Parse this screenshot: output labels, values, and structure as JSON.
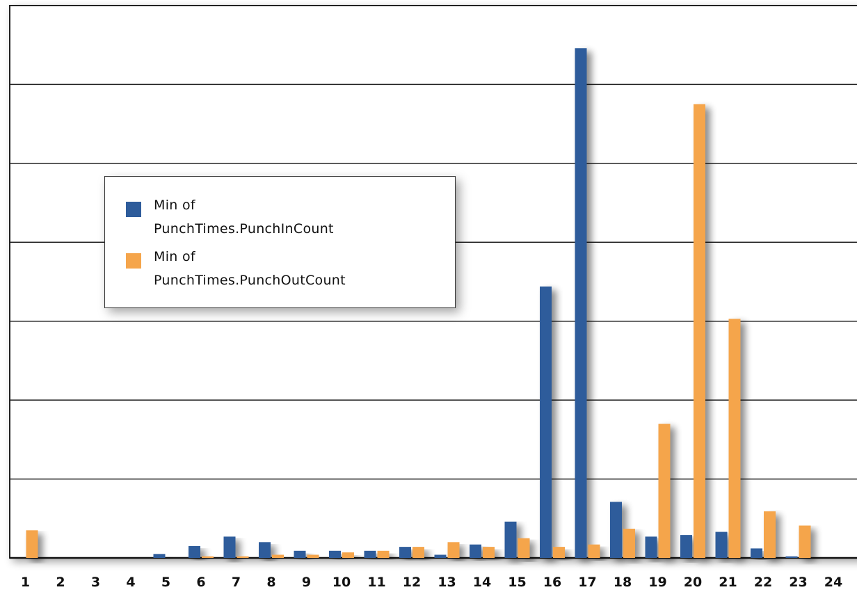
{
  "chart_data": {
    "type": "bar",
    "categories": [
      "1",
      "2",
      "3",
      "4",
      "5",
      "6",
      "7",
      "8",
      "9",
      "10",
      "11",
      "12",
      "13",
      "14",
      "15",
      "16",
      "17",
      "18",
      "19",
      "20",
      "21",
      "22",
      "23",
      "24"
    ],
    "series": [
      {
        "name": "Min of PunchTimes.PunchInCount",
        "color": "#2e5c9b",
        "values": [
          0,
          0,
          0,
          0,
          0.05,
          0.15,
          0.27,
          0.2,
          0.09,
          0.09,
          0.09,
          0.14,
          0.04,
          0.17,
          0.46,
          3.44,
          6.46,
          0.71,
          0.27,
          0.29,
          0.33,
          0.12,
          0.02,
          0
        ]
      },
      {
        "name": "Min of PunchTimes.PunchOutCount",
        "color": "#f5a54b",
        "values": [
          0.35,
          0,
          0,
          0,
          0,
          0.02,
          0.02,
          0.04,
          0.04,
          0.07,
          0.09,
          0.14,
          0.2,
          0.14,
          0.25,
          0.14,
          0.17,
          0.37,
          1.7,
          5.75,
          3.03,
          0.59,
          0.41,
          0
        ]
      }
    ],
    "ylim": [
      0,
      7
    ],
    "grid": true,
    "legend_position": "center-left",
    "xlabel": "",
    "ylabel": ""
  },
  "legend": {
    "items": [
      {
        "label": "Min of\nPunchTimes.PunchInCount",
        "color": "#2e5c9b"
      },
      {
        "label": "Min of\nPunchTimes.PunchOutCount",
        "color": "#f5a54b"
      }
    ]
  }
}
